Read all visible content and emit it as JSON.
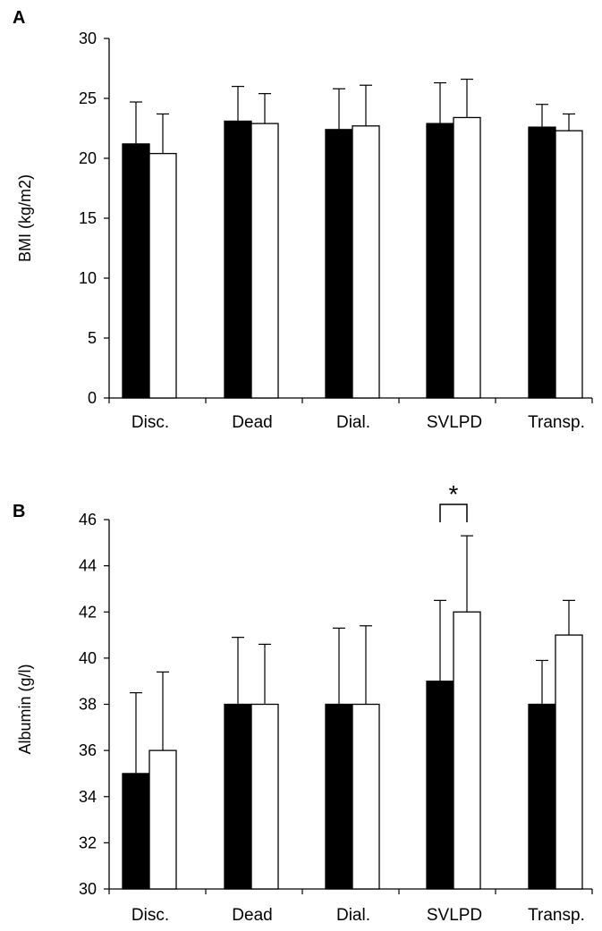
{
  "chart_data": [
    {
      "type": "bar",
      "panel": "A",
      "ylabel": "BMI (kg/m2)",
      "xlabel": "",
      "ylim": [
        0,
        30
      ],
      "yticks": [
        0,
        5,
        10,
        15,
        20,
        25,
        30
      ],
      "categories": [
        "Disc.",
        "Dead",
        "Dial.",
        "SVLPD",
        "Transp."
      ],
      "series": [
        {
          "fill": "#000000",
          "values": [
            21.2,
            23.1,
            22.4,
            22.9,
            22.6
          ],
          "errors": [
            3.5,
            2.9,
            3.4,
            3.4,
            1.9
          ]
        },
        {
          "fill": "#ffffff",
          "values": [
            20.4,
            22.9,
            22.7,
            23.4,
            22.3
          ],
          "errors": [
            3.3,
            2.5,
            3.4,
            3.2,
            1.4
          ]
        }
      ],
      "legend": "none",
      "grid": false
    },
    {
      "type": "bar",
      "panel": "B",
      "ylabel": "Albumin (g/l)",
      "xlabel": "",
      "ylim": [
        30,
        46
      ],
      "yticks": [
        30,
        32,
        34,
        36,
        38,
        40,
        42,
        44,
        46
      ],
      "categories": [
        "Disc.",
        "Dead",
        "Dial.",
        "SVLPD",
        "Transp."
      ],
      "series": [
        {
          "fill": "#000000",
          "values": [
            35.0,
            38.0,
            38.0,
            39.0,
            38.0
          ],
          "errors": [
            3.5,
            2.9,
            3.3,
            3.5,
            1.9
          ]
        },
        {
          "fill": "#ffffff",
          "values": [
            36.0,
            38.0,
            38.0,
            42.0,
            41.0
          ],
          "errors": [
            3.4,
            2.6,
            3.4,
            3.3,
            1.5
          ]
        }
      ],
      "annotations": [
        {
          "text": "*",
          "category": "SVLPD",
          "type": "significance-bracket"
        }
      ],
      "legend": "none",
      "grid": false
    }
  ]
}
